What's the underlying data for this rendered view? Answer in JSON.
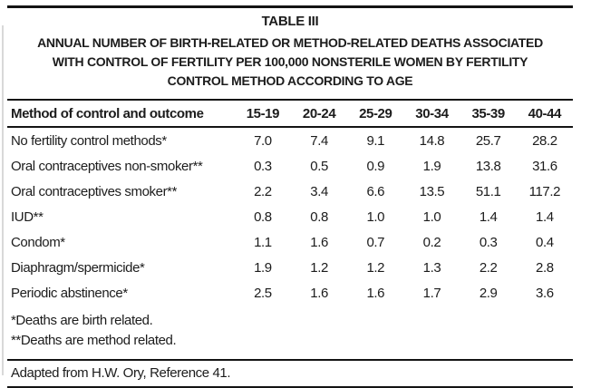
{
  "page": {
    "background": "#ffffff",
    "text_color": "#1c1c1c",
    "rule_color": "#141414"
  },
  "table": {
    "label": "TABLE III",
    "title_lines": [
      "ANNUAL NUMBER OF BIRTH-RELATED OR METHOD-RELATED DEATHS ASSOCIATED",
      "WITH CONTROL OF FERTILITY PER 100,000 NONSTERILE WOMEN BY FERTILITY",
      "CONTROL METHOD ACCORDING TO AGE"
    ],
    "columns": [
      "Method of control and outcome",
      "15-19",
      "20-24",
      "25-29",
      "30-34",
      "35-39",
      "40-44"
    ],
    "rows": [
      {
        "label": "No fertility control methods*",
        "values": [
          "7.0",
          "7.4",
          "9.1",
          "14.8",
          "25.7",
          "28.2"
        ]
      },
      {
        "label": "Oral contraceptives non-smoker**",
        "values": [
          "0.3",
          "0.5",
          "0.9",
          "1.9",
          "13.8",
          "31.6"
        ]
      },
      {
        "label": "Oral contraceptives smoker**",
        "values": [
          "2.2",
          "3.4",
          "6.6",
          "13.5",
          "51.1",
          "117.2"
        ]
      },
      {
        "label": "IUD**",
        "values": [
          "0.8",
          "0.8",
          "1.0",
          "1.0",
          "1.4",
          "1.4"
        ]
      },
      {
        "label": "Condom*",
        "values": [
          "1.1",
          "1.6",
          "0.7",
          "0.2",
          "0.3",
          "0.4"
        ]
      },
      {
        "label": "Diaphragm/spermicide*",
        "values": [
          "1.9",
          "1.2",
          "1.2",
          "1.3",
          "2.2",
          "2.8"
        ]
      },
      {
        "label": "Periodic abstinence*",
        "values": [
          "2.5",
          "1.6",
          "1.6",
          "1.7",
          "2.9",
          "3.6"
        ]
      }
    ],
    "footnotes": [
      "*Deaths are birth related.",
      "**Deaths are method related."
    ],
    "source": "Adapted from H.W. Ory, Reference 41."
  }
}
